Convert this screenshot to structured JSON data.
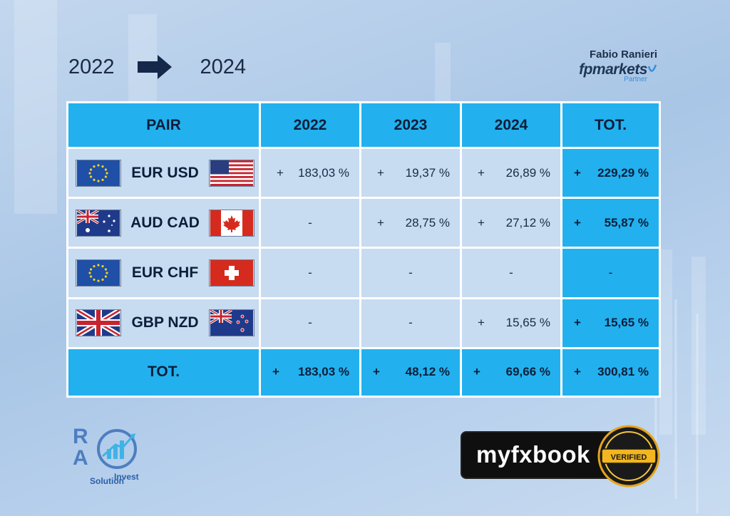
{
  "header": {
    "year_from": "2022",
    "year_to": "2024"
  },
  "brand": {
    "name": "Fabio Ranieri",
    "logo": "fpmarkets",
    "sub": "Partner"
  },
  "table": {
    "headers": [
      "PAIR",
      "2022",
      "2023",
      "2024",
      "TOT."
    ],
    "rows": [
      {
        "pair": "EUR USD",
        "flag_left": "eu-flag",
        "flag_right": "us-flag",
        "y2022": "183,03 %",
        "y2023": "19,37 %",
        "y2024": "26,89 %",
        "tot": "229,29 %"
      },
      {
        "pair": "AUD CAD",
        "flag_left": "au-flag",
        "flag_right": "ca-flag",
        "y2022": "-",
        "y2023": "28,75 %",
        "y2024": "27,12 %",
        "tot": "55,87 %"
      },
      {
        "pair": "EUR CHF",
        "flag_left": "eu-flag",
        "flag_right": "ch-flag",
        "y2022": "-",
        "y2023": "-",
        "y2024": "-",
        "tot": "-"
      },
      {
        "pair": "GBP NZD",
        "flag_left": "gb-flag",
        "flag_right": "nz-flag",
        "y2022": "-",
        "y2023": "-",
        "y2024": "15,65 %",
        "tot": "15,65 %"
      }
    ],
    "total_row": {
      "label": "TOT.",
      "y2022": "183,03 %",
      "y2023": "48,12 %",
      "y2024": "69,66 %",
      "tot": "300,81 %"
    },
    "plus_sign": "+"
  },
  "logos": {
    "ra": {
      "r": "R",
      "a": "A",
      "invest": "Invest",
      "solution": "Solution"
    },
    "myfxbook": {
      "text": "myfxbook",
      "seal_text": "VERIFIED"
    }
  },
  "colors": {
    "header_cyan": "#22b1ee",
    "cell_light": "#c7dbf1",
    "text_navy": "#0c1e3a"
  }
}
